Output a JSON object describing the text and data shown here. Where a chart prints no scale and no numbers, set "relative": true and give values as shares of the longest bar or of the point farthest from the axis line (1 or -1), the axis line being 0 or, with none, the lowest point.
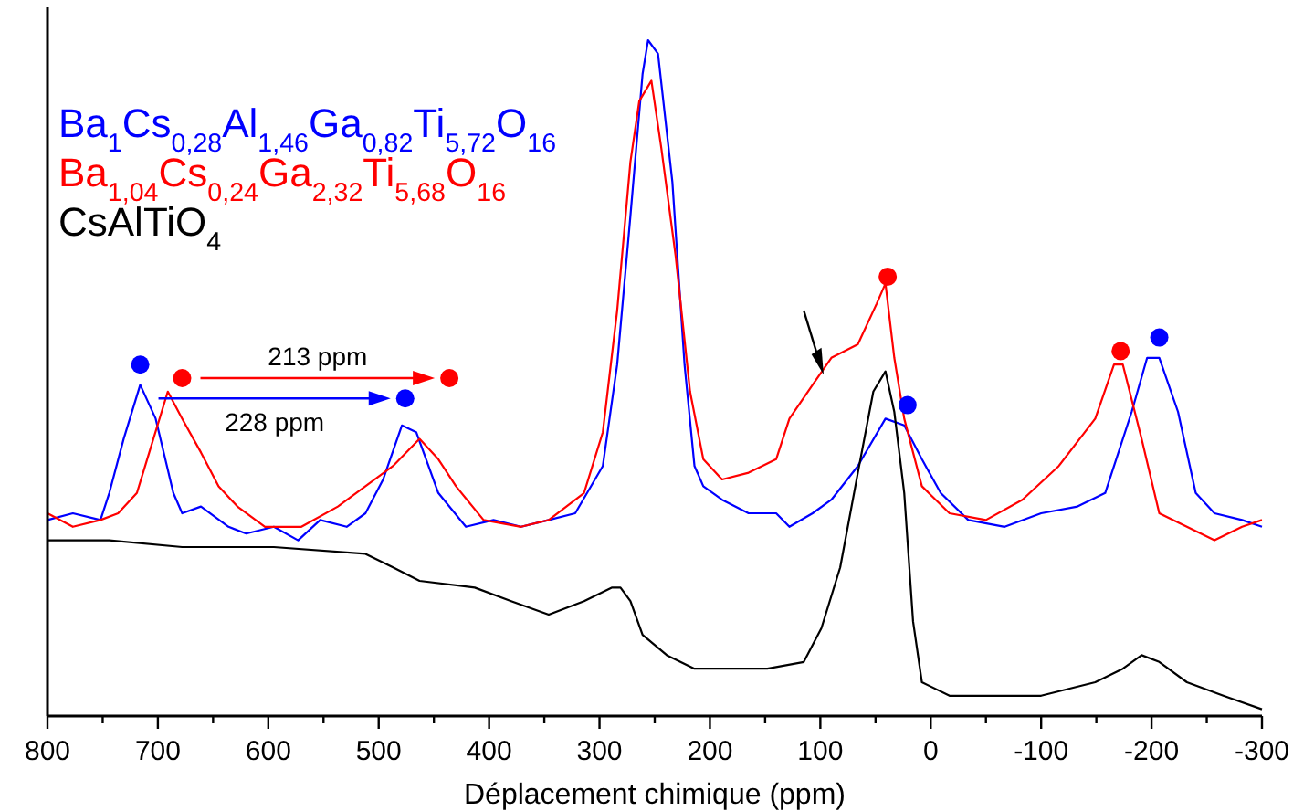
{
  "chart_data": {
    "type": "line",
    "relative": true,
    "xlabel": "Déplacement chimique (ppm)",
    "xlim": [
      800,
      -300
    ],
    "xticks": [
      800,
      {
        "value": 750,
        "label": null
      },
      700,
      {
        "value": 650,
        "label": null
      },
      600,
      {
        "value": 550,
        "label": null
      },
      500,
      {
        "value": 450,
        "label": null
      },
      400,
      {
        "value": 350,
        "label": null
      },
      300,
      {
        "value": 250,
        "label": null
      },
      200,
      {
        "value": 150,
        "label": null
      },
      100,
      {
        "value": 50,
        "label": null
      },
      0,
      {
        "value": -50,
        "label": null
      },
      -100,
      {
        "value": -150,
        "label": null
      },
      -200,
      {
        "value": -250,
        "label": null
      },
      -300
    ],
    "legend": "top left",
    "grid": false,
    "series": [
      {
        "name": "Ba$_{1}$Cs$_{0,28}$Al$_{1,46}$Ga$_{0,82}$Ti$_{5,72}$O$_{16}$",
        "color": "#0000ff",
        "x": [
          800,
          777,
          752,
          744,
          731,
          716,
          702,
          686,
          678,
          661,
          636,
          620,
          595,
          573,
          553,
          529,
          512,
          496,
          479,
          466,
          446,
          421,
          396,
          371,
          346,
          322,
          297,
          284,
          272,
          261,
          256,
          247,
          234,
          223,
          214,
          206,
          189,
          165,
          140,
          128,
          107,
          90,
          66,
          41,
          24,
          8,
          -9,
          -34,
          -67,
          -100,
          -133,
          -158,
          -182,
          -196,
          -207,
          -224,
          -240,
          -257,
          -282,
          -300
        ],
        "values": [
          0.29,
          0.3,
          0.29,
          0.33,
          0.41,
          0.49,
          0.44,
          0.33,
          0.3,
          0.31,
          0.28,
          0.27,
          0.28,
          0.26,
          0.29,
          0.28,
          0.3,
          0.35,
          0.43,
          0.42,
          0.33,
          0.28,
          0.29,
          0.28,
          0.29,
          0.3,
          0.37,
          0.52,
          0.74,
          0.95,
          1.0,
          0.98,
          0.79,
          0.52,
          0.37,
          0.34,
          0.32,
          0.3,
          0.3,
          0.28,
          0.3,
          0.32,
          0.37,
          0.44,
          0.43,
          0.38,
          0.33,
          0.29,
          0.28,
          0.3,
          0.31,
          0.33,
          0.45,
          0.53,
          0.53,
          0.45,
          0.33,
          0.3,
          0.29,
          0.28
        ]
      },
      {
        "name": "Ba$_{1,04}$Cs$_{0,24}$Ga$_{2,32}$Ti$_{5,68}$O$_{16}$",
        "color": "#ff0000",
        "x": [
          800,
          777,
          752,
          736,
          719,
          691,
          678,
          661,
          645,
          628,
          603,
          570,
          537,
          512,
          487,
          463,
          446,
          430,
          405,
          371,
          346,
          314,
          297,
          284,
          272,
          264,
          253,
          244,
          231,
          218,
          206,
          189,
          165,
          140,
          128,
          107,
          90,
          66,
          49,
          41,
          33,
          24,
          8,
          -17,
          -50,
          -83,
          -116,
          -149,
          -166,
          -174,
          -191,
          -207,
          -232,
          -257,
          -282,
          -300
        ],
        "values": [
          0.3,
          0.28,
          0.29,
          0.3,
          0.33,
          0.48,
          0.44,
          0.39,
          0.34,
          0.31,
          0.28,
          0.28,
          0.31,
          0.34,
          0.37,
          0.41,
          0.38,
          0.34,
          0.29,
          0.28,
          0.29,
          0.33,
          0.42,
          0.6,
          0.82,
          0.91,
          0.94,
          0.84,
          0.68,
          0.48,
          0.38,
          0.35,
          0.36,
          0.38,
          0.44,
          0.49,
          0.53,
          0.55,
          0.61,
          0.64,
          0.53,
          0.44,
          0.34,
          0.3,
          0.29,
          0.32,
          0.37,
          0.44,
          0.52,
          0.52,
          0.41,
          0.3,
          0.28,
          0.26,
          0.28,
          0.29
        ]
      },
      {
        "name": "CsAlTiO$_{4}$",
        "color": "#000000",
        "x": [
          800,
          744,
          678,
          595,
          512,
          487,
          463,
          413,
          380,
          346,
          314,
          289,
          281,
          272,
          261,
          239,
          214,
          181,
          148,
          115,
          99,
          82,
          66,
          52,
          41,
          33,
          24,
          16,
          8,
          -17,
          -50,
          -100,
          -149,
          -174,
          -191,
          -207,
          -232,
          -265,
          -300
        ],
        "values": [
          0.26,
          0.26,
          0.25,
          0.25,
          0.24,
          0.22,
          0.2,
          0.19,
          0.17,
          0.15,
          0.17,
          0.19,
          0.19,
          0.17,
          0.12,
          0.09,
          0.07,
          0.07,
          0.07,
          0.08,
          0.13,
          0.22,
          0.36,
          0.48,
          0.51,
          0.45,
          0.33,
          0.14,
          0.05,
          0.03,
          0.03,
          0.03,
          0.05,
          0.07,
          0.09,
          0.08,
          0.05,
          0.03,
          0.01
        ]
      },
      {
        "color": "#ff0000",
        "type": "scatter",
        "marker": "circle",
        "x": [
          678,
          436,
          39,
          -172
        ],
        "values": [
          0.5,
          0.5,
          0.65,
          0.54
        ]
      },
      {
        "color": "#0000ff",
        "type": "scatter",
        "marker": "circle",
        "x": [
          716,
          476,
          21,
          -207
        ],
        "values": [
          0.52,
          0.47,
          0.46,
          0.56
        ]
      }
    ],
    "annotations": [
      "213 ppm",
      "228 ppm"
    ]
  }
}
